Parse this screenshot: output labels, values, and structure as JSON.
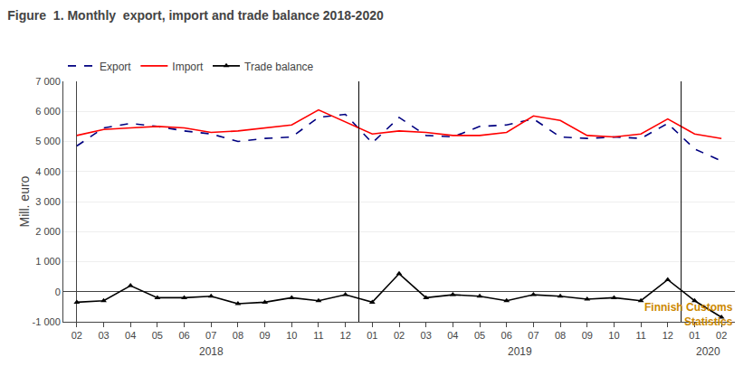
{
  "chart_data": {
    "type": "line",
    "title": "Figure  1. Monthly  export, import and trade balance 2018-2020",
    "y_label": "Mill. euro",
    "categories": [
      "02",
      "03",
      "04",
      "05",
      "06",
      "07",
      "08",
      "09",
      "10",
      "11",
      "12",
      "01",
      "02",
      "03",
      "04",
      "05",
      "06",
      "07",
      "08",
      "09",
      "10",
      "11",
      "12",
      "01",
      "02"
    ],
    "series": [
      {
        "name": "Export",
        "color": "#000080",
        "line_style": "dashed",
        "values": [
          4850,
          5450,
          5600,
          5500,
          5350,
          5250,
          5000,
          5100,
          5150,
          5800,
          5900,
          4950,
          5800,
          5200,
          5150,
          5500,
          5550,
          5750,
          5150,
          5100,
          5150,
          5100,
          5600,
          4750,
          4350
        ]
      },
      {
        "name": "Import",
        "color": "#FF0000",
        "line_style": "solid",
        "values": [
          5200,
          5400,
          5450,
          5500,
          5450,
          5300,
          5350,
          5450,
          5550,
          6050,
          5650,
          5250,
          5350,
          5300,
          5200,
          5200,
          5300,
          5850,
          5700,
          5200,
          5150,
          5250,
          5750,
          5250,
          5100
        ]
      },
      {
        "name": "Trade balance",
        "color": "#000000",
        "line_style": "solid",
        "marker": "triangle-up",
        "values": [
          -350,
          -300,
          200,
          -200,
          -200,
          -150,
          -400,
          -350,
          -200,
          -300,
          -100,
          -350,
          600,
          -200,
          -100,
          -150,
          -300,
          -100,
          -150,
          -250,
          -200,
          -300,
          400,
          -300,
          -850
        ]
      }
    ],
    "ylim": [
      -1000,
      7000
    ],
    "yticks": [
      {
        "value": -1000,
        "label": "-1 000"
      },
      0,
      {
        "value": 1000,
        "label": "1 000"
      },
      {
        "value": 2000,
        "label": "2 000"
      },
      {
        "value": 3000,
        "label": "3 000"
      },
      {
        "value": 4000,
        "label": "4 000"
      },
      {
        "value": 5000,
        "label": "5 000"
      },
      {
        "value": 6000,
        "label": "6 000"
      },
      {
        "value": 7000,
        "label": "7 000"
      }
    ],
    "grid": true,
    "legend": "upper left",
    "annotations": [
      {
        "text": "2018"
      },
      {
        "text": "2019"
      },
      {
        "text": "2020"
      },
      {
        "text": "Finnish Customs",
        "color": "#CC8800"
      },
      {
        "text": "Statistics",
        "color": "#CC8800"
      }
    ]
  }
}
